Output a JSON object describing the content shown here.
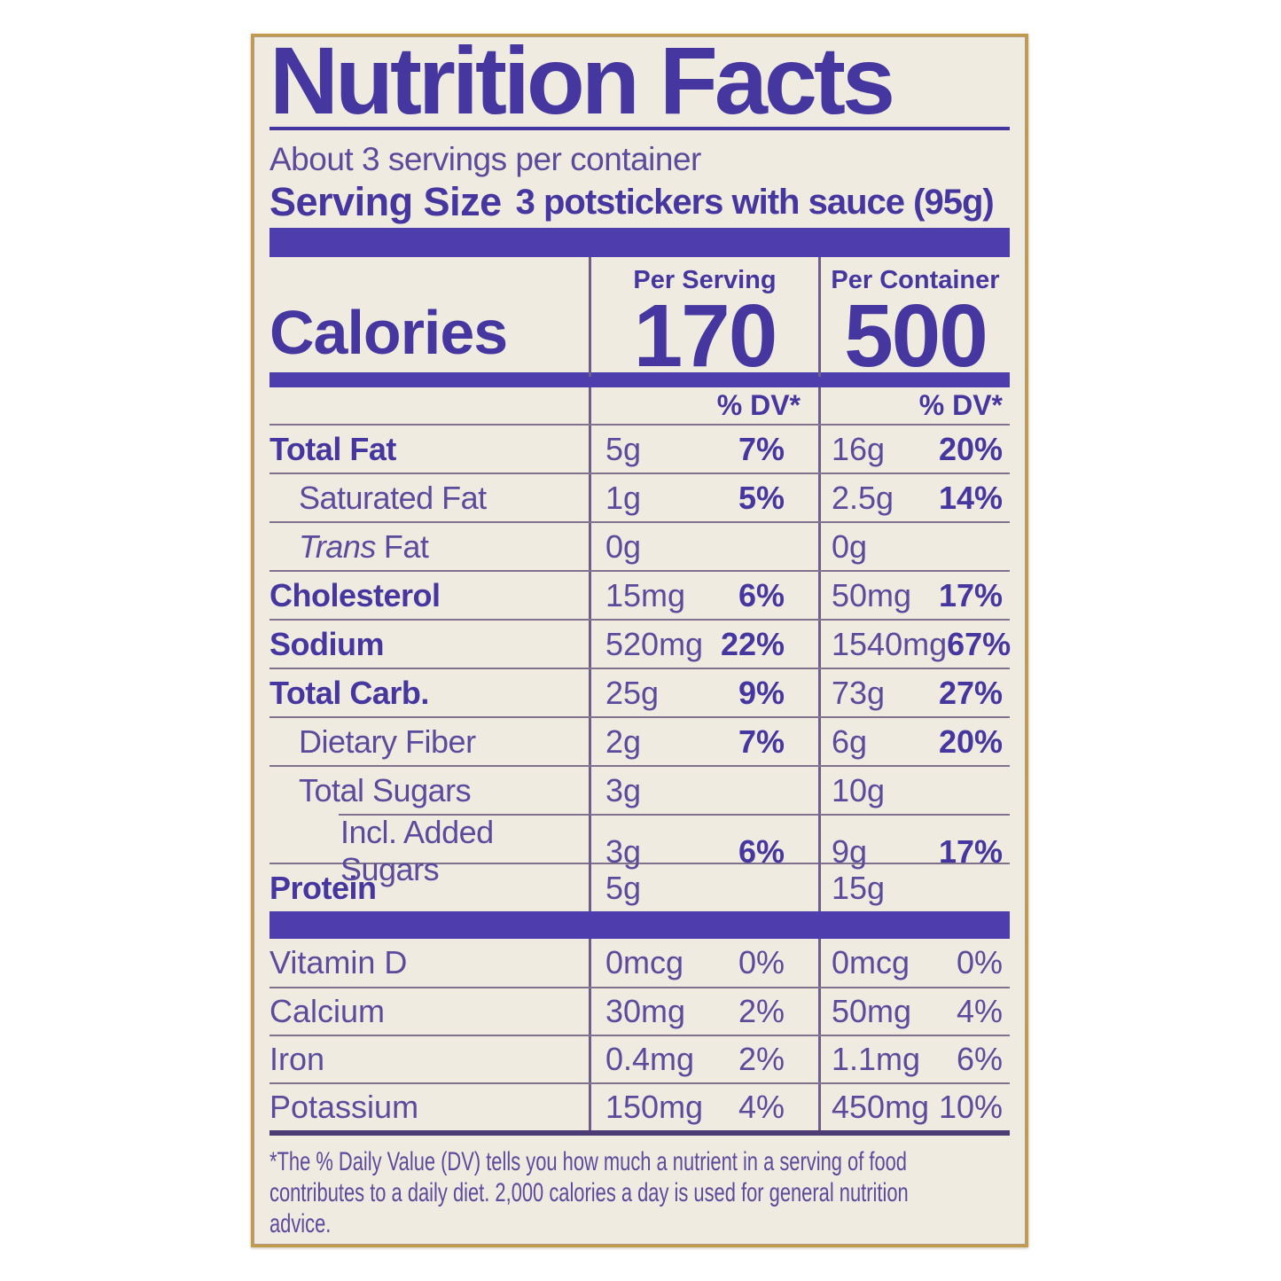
{
  "colors": {
    "purple_bold": "#46369f",
    "purple_text": "#5a4b9d",
    "bar_purple": "#4e3ead",
    "hairline": "#80718f",
    "divider": "#6e5e89",
    "medline": "#4c3c74",
    "cream": "#f0ebe0",
    "gold_border": "#c19b4a",
    "page_bg": "#ffffff"
  },
  "label": {
    "title": "Nutrition Facts",
    "servings_per_container": "About 3 servings per container",
    "serving_size_label": "Serving Size",
    "serving_size_value": "3 potstickers with sauce (95g)",
    "calories": {
      "heading": "Calories",
      "per_serving_label": "Per Serving",
      "per_serving_value": "170",
      "per_container_label": "Per Container",
      "per_container_value": "500"
    },
    "dv_header": "% DV*",
    "rows": [
      {
        "name": "Total Fat",
        "serving_amount": "5g",
        "serving_dv": "7%",
        "container_amount": "16g",
        "container_dv": "20%"
      },
      {
        "name": "Saturated Fat",
        "serving_amount": "1g",
        "serving_dv": "5%",
        "container_amount": "2.5g",
        "container_dv": "14%"
      },
      {
        "name_italic": "Trans",
        "name": "Fat",
        "serving_amount": "0g",
        "serving_dv": "",
        "container_amount": "0g",
        "container_dv": ""
      },
      {
        "name": "Cholesterol",
        "serving_amount": "15mg",
        "serving_dv": "6%",
        "container_amount": "50mg",
        "container_dv": "17%"
      },
      {
        "name": "Sodium",
        "serving_amount": "520mg",
        "serving_dv": "22%",
        "container_amount": "1540mg",
        "container_dv": "67%"
      },
      {
        "name": "Total Carb.",
        "serving_amount": "25g",
        "serving_dv": "9%",
        "container_amount": "73g",
        "container_dv": "27%"
      },
      {
        "name": "Dietary Fiber",
        "serving_amount": "2g",
        "serving_dv": "7%",
        "container_amount": "6g",
        "container_dv": "20%"
      },
      {
        "name": "Total Sugars",
        "serving_amount": "3g",
        "serving_dv": "",
        "container_amount": "10g",
        "container_dv": ""
      },
      {
        "name": "Incl. Added Sugars",
        "serving_amount": "3g",
        "serving_dv": "6%",
        "container_amount": "9g",
        "container_dv": "17%"
      },
      {
        "name": "Protein",
        "serving_amount": "5g",
        "serving_dv": "",
        "container_amount": "15g",
        "container_dv": ""
      }
    ],
    "vitamins": [
      {
        "name": "Vitamin D",
        "serving_amount": "0mcg",
        "serving_dv": "0%",
        "container_amount": "0mcg",
        "container_dv": "0%"
      },
      {
        "name": "Calcium",
        "serving_amount": "30mg",
        "serving_dv": "2%",
        "container_amount": "50mg",
        "container_dv": "4%"
      },
      {
        "name": "Iron",
        "serving_amount": "0.4mg",
        "serving_dv": "2%",
        "container_amount": "1.1mg",
        "container_dv": "6%"
      },
      {
        "name": "Potassium",
        "serving_amount": "150mg",
        "serving_dv": "4%",
        "container_amount": "450mg",
        "container_dv": "10%"
      }
    ],
    "footnote_lines": [
      "*The % Daily Value (DV) tells you how much a nutrient in a serving of food",
      "contributes to a daily diet. 2,000 calories a day is used for general nutrition",
      "advice."
    ]
  }
}
